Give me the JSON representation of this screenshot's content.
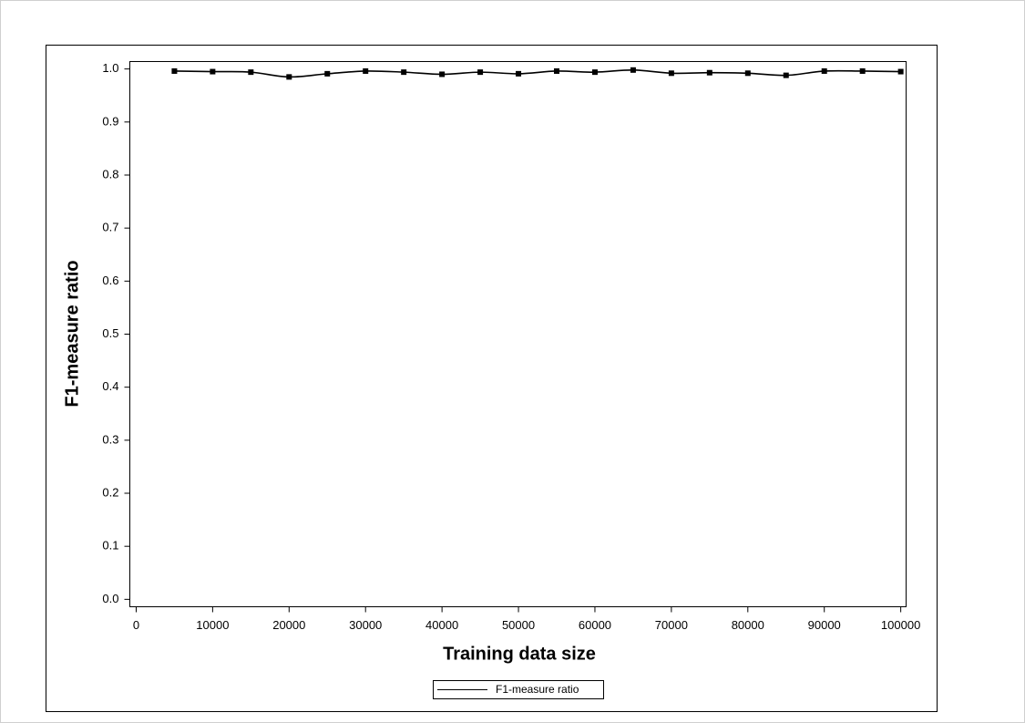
{
  "chart_data": {
    "type": "line",
    "x_label": "Training data size",
    "y_label": "F1-measure ratio",
    "x": [
      5000,
      10000,
      15000,
      20000,
      25000,
      30000,
      35000,
      40000,
      45000,
      50000,
      55000,
      60000,
      65000,
      70000,
      75000,
      80000,
      85000,
      90000,
      95000,
      100000
    ],
    "series": [
      {
        "name": "F1-measure ratio",
        "color": "#000000",
        "values": [
          0.996,
          0.995,
          0.994,
          0.985,
          0.991,
          0.996,
          0.994,
          0.99,
          0.994,
          0.991,
          0.996,
          0.994,
          0.998,
          0.992,
          0.993,
          0.992,
          0.988,
          0.996,
          0.996,
          0.995
        ]
      }
    ],
    "xlim": [
      -830,
      100700
    ],
    "xticks": [
      0,
      10000,
      20000,
      30000,
      40000,
      50000,
      60000,
      70000,
      80000,
      90000,
      100000
    ],
    "ylim": [
      -0.014,
      1.014
    ],
    "yticks": [
      {
        "value": 0,
        "label": "0.0"
      },
      0.1,
      0.2,
      0.3,
      0.4,
      0.5,
      0.6,
      0.7,
      0.8,
      0.9,
      {
        "value": 1,
        "label": "1.0"
      }
    ],
    "legend": "bottom"
  }
}
